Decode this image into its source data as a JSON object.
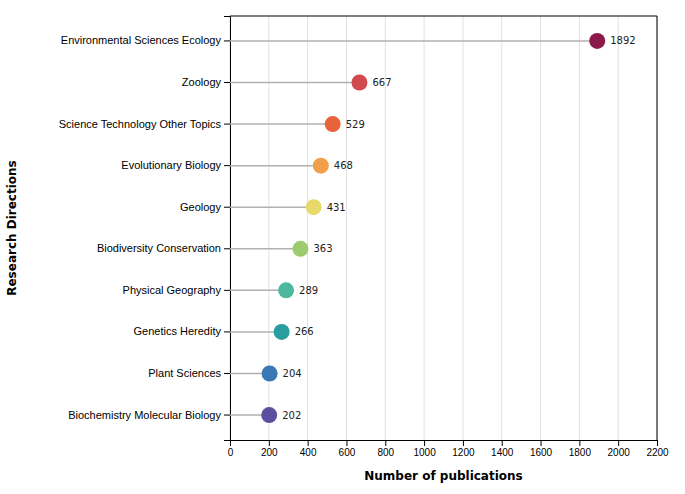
{
  "chart_data": {
    "type": "lollipop",
    "orientation": "horizontal",
    "categories": [
      "Biochemistry Molecular Biology",
      "Plant Sciences",
      "Genetics Heredity",
      "Physical Geography",
      "Biodiversity Conservation",
      "Geology",
      "Evolutionary Biology",
      "Science Technology Other Topics",
      "Zoology",
      "Environmental Sciences Ecology"
    ],
    "values": [
      202,
      204,
      266,
      289,
      363,
      431,
      468,
      529,
      667,
      1892
    ],
    "colors": [
      "#5c4fa0",
      "#3a78b5",
      "#2a9d9f",
      "#4db89e",
      "#9ecb6d",
      "#e8d96a",
      "#f0a04a",
      "#e8623a",
      "#d14a50",
      "#8b1a4a"
    ],
    "color": "#b0b0b0",
    "xlabel": "Number of publications",
    "ylabel": "Research Directions",
    "xlim": [
      0,
      2200
    ],
    "xticks": [
      0,
      200,
      400,
      600,
      800,
      1000,
      1200,
      1400,
      1600,
      1800,
      2000,
      2200
    ],
    "grid": true,
    "data_labels": true
  }
}
